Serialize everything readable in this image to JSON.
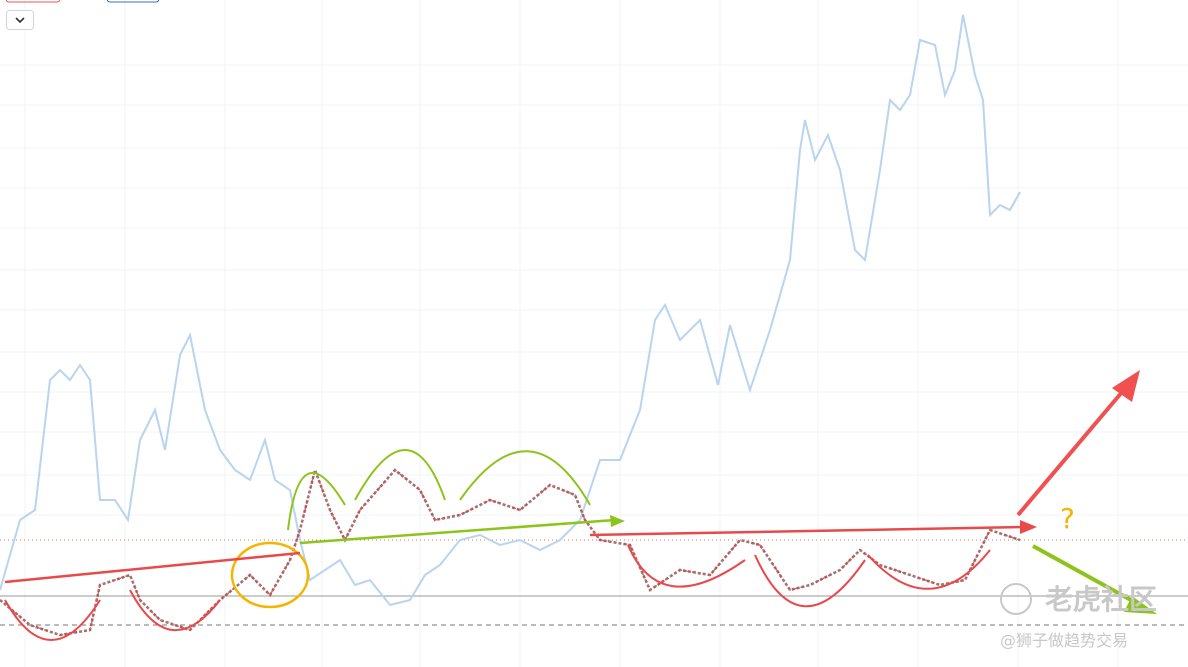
{
  "annotation": {
    "question_mark": "?"
  },
  "watermark": {
    "brand": "老虎社区",
    "author": "@狮子做趋势交易"
  }
}
